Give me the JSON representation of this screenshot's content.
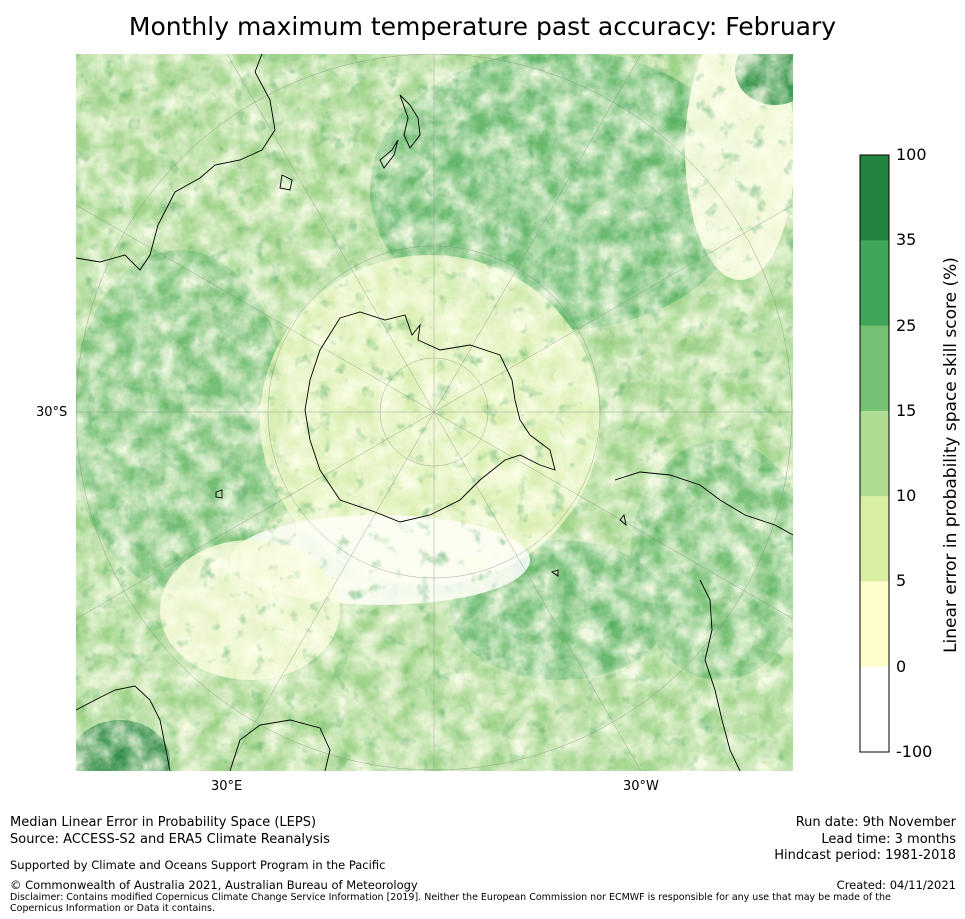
{
  "title": "Monthly maximum temperature past accuracy: February",
  "map": {
    "projection": "south-polar-stereographic",
    "lat_labels": [
      "30°S"
    ],
    "lon_labels": [
      "30°E",
      "30°W"
    ]
  },
  "colorbar": {
    "title": "Linear error in probability space skill score (%)",
    "ticks": [
      "100",
      "35",
      "25",
      "15",
      "10",
      "5",
      "0",
      "-100"
    ],
    "colors": [
      "#23843f",
      "#40a75a",
      "#76c073",
      "#aedd92",
      "#d9efa4",
      "#ffffcc",
      "#ffffff"
    ]
  },
  "footer": {
    "left_line1": "Median Linear Error in Probability Space (LEPS)",
    "left_line2": "Source: ACCESS-S2 and ERA5 Climate Reanalysis",
    "supported": "Supported by Climate and Oceans Support Program in the Pacific",
    "copyright": "© Commonwealth of Australia 2021, Australian Bureau of Meteorology",
    "disclaimer": "Disclaimer: Contains modified Copernicus Climate Change Service Information [2019]. Neither the European Commission nor ECMWF is responsible for any use that may be made of the Copernicus Information or Data it contains.",
    "run_date": "Run date: 9th November",
    "lead_time": "Lead time: 3 months",
    "hindcast": "Hindcast period: 1981-2018",
    "created": "Created: 04/11/2021"
  }
}
